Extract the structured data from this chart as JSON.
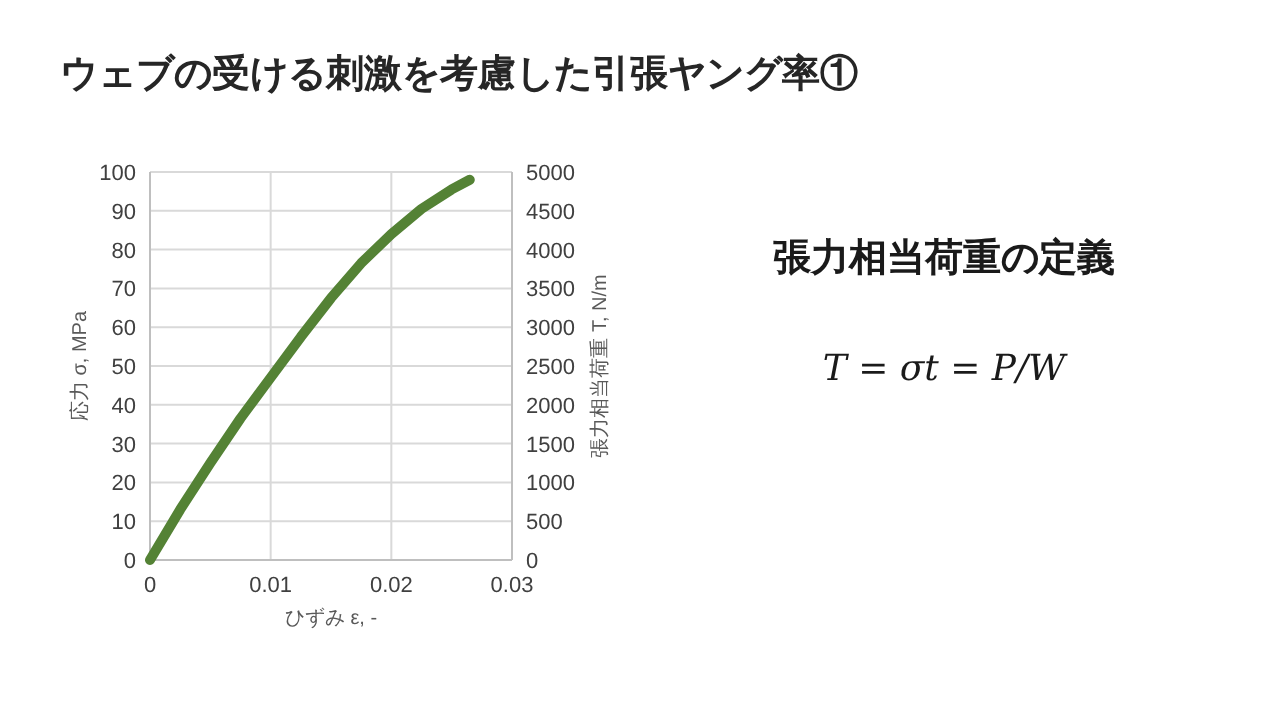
{
  "chart_data": {
    "type": "line",
    "title": "ウェブの受ける刺激を考慮した引張ヤング率①",
    "xlabel": "ひずみ ε, -",
    "ylabel": "応力 σ, MPa",
    "y2label": "張力相当荷重 T, N/m",
    "annotations": [
      "張力相当荷重の定義",
      "T = σt = P/W"
    ],
    "series": [
      {
        "color": "#548235",
        "x": [
          0,
          0.0025,
          0.005,
          0.0075,
          0.01,
          0.0125,
          0.015,
          0.0175,
          0.02,
          0.0225,
          0.025,
          0.0265
        ],
        "values": [
          0,
          13,
          25,
          36.5,
          47,
          57.5,
          67.5,
          76.5,
          84,
          90.5,
          95.5,
          98
        ]
      }
    ],
    "xlim": [
      0,
      0.03
    ],
    "xticks": [
      0,
      0.01,
      0.02,
      0.03
    ],
    "ylim": [
      0,
      100
    ],
    "yticks": [
      0,
      10,
      20,
      30,
      40,
      50,
      60,
      70,
      80,
      90,
      100
    ],
    "y2lim": [
      0,
      5000
    ],
    "y2ticks": [
      0,
      500,
      1000,
      1500,
      2000,
      2500,
      3000,
      3500,
      4000,
      4500,
      5000
    ],
    "grid": true,
    "line_style": "solid",
    "marker": "none"
  }
}
